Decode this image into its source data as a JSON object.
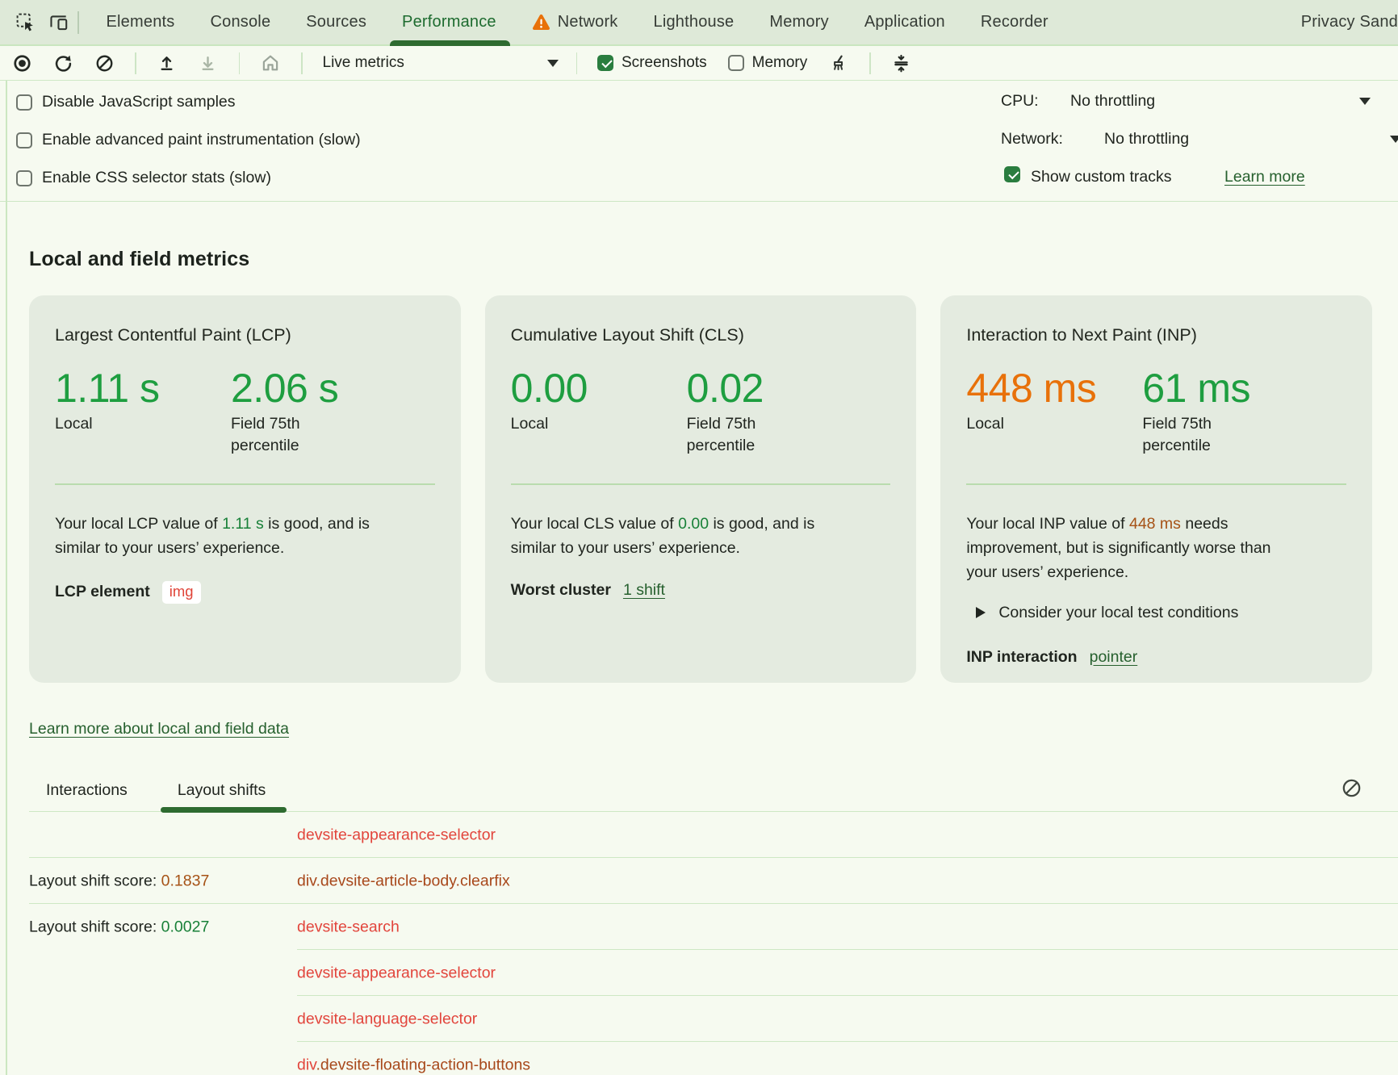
{
  "tabbar": {
    "tabs": [
      {
        "label": "Elements"
      },
      {
        "label": "Console"
      },
      {
        "label": "Sources"
      },
      {
        "label": "Performance",
        "active": true
      },
      {
        "label": "Network",
        "warning": true
      },
      {
        "label": "Lighthouse"
      },
      {
        "label": "Memory"
      },
      {
        "label": "Application"
      },
      {
        "label": "Recorder"
      },
      {
        "label": "Privacy Sand"
      }
    ]
  },
  "toolbar": {
    "live_metrics_label": "Live metrics",
    "screenshots_label": "Screenshots",
    "screenshots_checked": true,
    "memory_label": "Memory",
    "memory_checked": false
  },
  "settings": {
    "checkboxes": [
      {
        "label": "Disable JavaScript samples",
        "checked": false
      },
      {
        "label": "Enable advanced paint instrumentation (slow)",
        "checked": false
      },
      {
        "label": "Enable CSS selector stats (slow)",
        "checked": false
      }
    ],
    "cpu_label": "CPU:",
    "cpu_value": "No throttling",
    "network_label": "Network:",
    "network_value": "No throttling",
    "show_custom_tracks_label": "Show custom tracks",
    "show_custom_tracks_checked": true,
    "learn_more_label": "Learn more"
  },
  "metrics": {
    "heading": "Local and field metrics",
    "cards": [
      {
        "title": "Largest Contentful Paint (LCP)",
        "local_value": "1.11 s",
        "local_label": "Local",
        "field_value": "2.06 s",
        "field_label": "Field 75th percentile",
        "desc": [
          {
            "t": "Your local LCP value of "
          },
          {
            "t": "1.11 s",
            "c": "green"
          },
          {
            "t": " is good, and is similar to your users’ experience."
          }
        ],
        "element_label": "LCP element",
        "element_value": "img"
      },
      {
        "title": "Cumulative Layout Shift (CLS)",
        "local_value": "0.00",
        "local_label": "Local",
        "field_value": "0.02",
        "field_label": "Field 75th percentile",
        "desc": [
          {
            "t": "Your local CLS value of "
          },
          {
            "t": "0.00",
            "c": "green"
          },
          {
            "t": " is good, and is similar to your users’ experience."
          }
        ],
        "cluster_label": "Worst cluster",
        "cluster_link": "1 shift"
      },
      {
        "title": "Interaction to Next Paint (INP)",
        "local_value": "448 ms",
        "local_label": "Local",
        "field_value": "61 ms",
        "field_label": "Field 75th percentile",
        "desc": [
          {
            "t": "Your local INP value of "
          },
          {
            "t": "448 ms",
            "c": "orange"
          },
          {
            "t": " needs improvement, but is significantly worse than your users’ experience."
          }
        ],
        "consider_label": "Consider your local test conditions",
        "interaction_label": "INP interaction",
        "interaction_link": "pointer"
      }
    ],
    "learn_more_link": "Learn more about local and field data"
  },
  "log": {
    "tabs": [
      {
        "label": "Interactions"
      },
      {
        "label": "Layout shifts",
        "active": true
      }
    ],
    "rows": [
      {
        "selector": [
          {
            "t": "devsite-appearance-selector",
            "c": "red"
          }
        ],
        "divider": "full"
      },
      {
        "label": "Layout shift score: ",
        "score": "0.1837",
        "score_color": "orange",
        "selector": [
          {
            "t": "div.devsite-article-body.clearfix",
            "c": "brown"
          }
        ],
        "divider": "full"
      },
      {
        "label": "Layout shift score: ",
        "score": "0.0027",
        "score_color": "green",
        "selector": [
          {
            "t": "devsite-search",
            "c": "red"
          }
        ],
        "divider": "indent"
      },
      {
        "selector": [
          {
            "t": "devsite-appearance-selector",
            "c": "red"
          }
        ],
        "divider": "indent"
      },
      {
        "selector": [
          {
            "t": "devsite-language-selector",
            "c": "red"
          }
        ],
        "divider": "indent"
      },
      {
        "selector": [
          {
            "t": "div",
            "c": "red"
          },
          {
            "t": ".devsite-floating-action-buttons",
            "c": "brown"
          }
        ],
        "divider": null
      }
    ]
  },
  "colors": {
    "tabbar_bg": "#dee9d8",
    "panel_bg": "#f6faf0",
    "card_bg": "#e4ebe0",
    "accent_green_value": "#1e9e40",
    "accent_orange_value": "#e8710a",
    "inline_green": "#188038",
    "inline_orange": "#a65216",
    "link_green": "#26602e",
    "selector_red": "#e2453c",
    "selector_brown": "#a8481b",
    "active_tab_green": "#2e6b30",
    "warning_orange": "#e8710a"
  }
}
